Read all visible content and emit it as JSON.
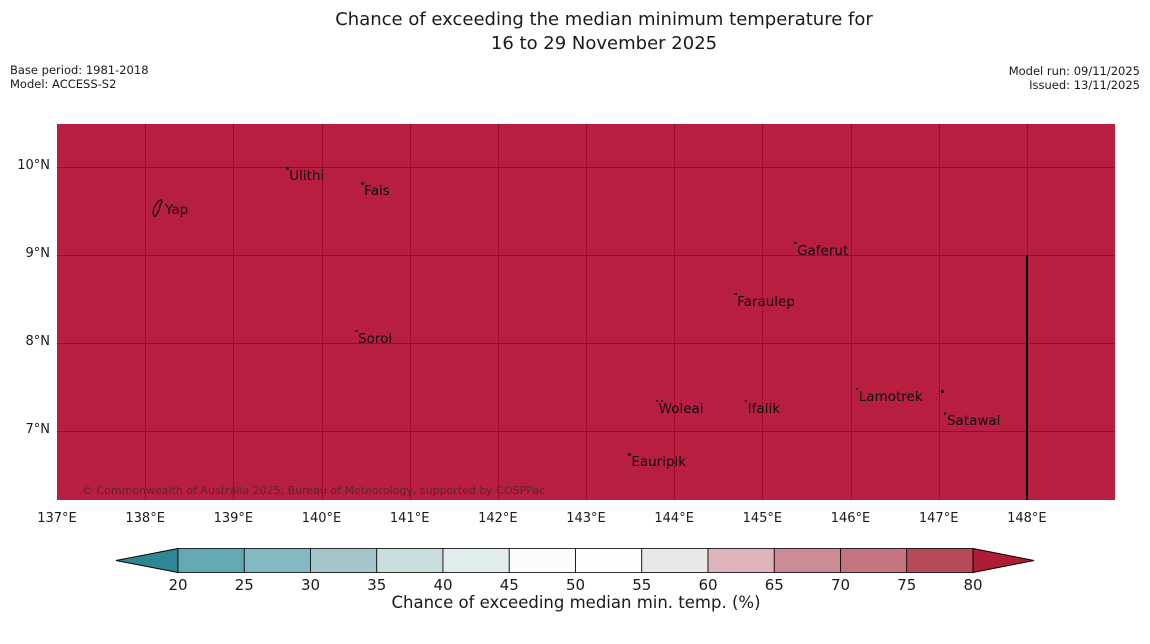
{
  "title": {
    "line1": "Chance of exceeding the median minimum temperature for",
    "line2": "16 to 29 November 2025"
  },
  "meta_left": {
    "base_period": "Base period: 1981-2018",
    "model": "Model: ACCESS-S2"
  },
  "meta_right": {
    "model_run": "Model run: 09/11/2025",
    "issued": "Issued: 13/11/2025"
  },
  "map": {
    "fill_color": "#b71e40",
    "extent": {
      "lon_min": 137.0,
      "lon_max": 149.0,
      "lat_min": 6.21,
      "lat_max": 10.49
    },
    "grid": {
      "lon_lines": [
        138,
        139,
        140,
        141,
        142,
        143,
        144,
        145,
        146,
        147,
        148
      ],
      "lat_lines": [
        7,
        8,
        9,
        10
      ],
      "lat_line_color": "#8b1028",
      "lon_line_color": "#262626"
    },
    "x_ticks": [
      {
        "lon": 137,
        "label": "137°E"
      },
      {
        "lon": 138,
        "label": "138°E"
      },
      {
        "lon": 139,
        "label": "139°E"
      },
      {
        "lon": 140,
        "label": "140°E"
      },
      {
        "lon": 141,
        "label": "141°E"
      },
      {
        "lon": 142,
        "label": "142°E"
      },
      {
        "lon": 143,
        "label": "143°E"
      },
      {
        "lon": 144,
        "label": "144°E"
      },
      {
        "lon": 145,
        "label": "145°E"
      },
      {
        "lon": 146,
        "label": "146°E"
      },
      {
        "lon": 147,
        "label": "147°E"
      },
      {
        "lon": 148,
        "label": "148°E"
      }
    ],
    "y_ticks": [
      {
        "lat": 10,
        "label": "10°N"
      },
      {
        "lat": 9,
        "label": "9°N"
      },
      {
        "lat": 8,
        "label": "8°N"
      },
      {
        "lat": 7,
        "label": "7°N"
      }
    ],
    "places": [
      {
        "name": "Yap",
        "lon": 138.1,
        "lat": 9.53,
        "marker": "island"
      },
      {
        "name": "Ulithi",
        "lon": 139.6,
        "lat": 9.92,
        "marker": "dot"
      },
      {
        "name": "Fais",
        "lon": 140.45,
        "lat": 9.75,
        "marker": "dot"
      },
      {
        "name": "Gaferut",
        "lon": 145.36,
        "lat": 9.07,
        "marker": "dot"
      },
      {
        "name": "Faraulep",
        "lon": 144.68,
        "lat": 8.49,
        "marker": "dot"
      },
      {
        "name": "Sorol",
        "lon": 140.38,
        "lat": 8.07,
        "marker": "dot"
      },
      {
        "name": "Woleai",
        "lon": 143.79,
        "lat": 7.27,
        "marker": "double-dot"
      },
      {
        "name": "Ifalik",
        "lon": 144.8,
        "lat": 7.27,
        "marker": "dot"
      },
      {
        "name": "Lamotrek",
        "lon": 146.06,
        "lat": 7.41,
        "marker": "dot"
      },
      {
        "name": "",
        "lon": 147.03,
        "lat": 7.38,
        "marker": "dot"
      },
      {
        "name": "Satawal",
        "lon": 147.06,
        "lat": 7.13,
        "marker": "dot"
      },
      {
        "name": "Eauripik",
        "lon": 143.48,
        "lat": 6.66,
        "marker": "dot"
      }
    ],
    "contour": {
      "lon": 147.99,
      "lat_from": 9.0,
      "lat_to": 6.21,
      "color": "#000000"
    },
    "copyright": "© Commonwealth of Australia 2025, Bureau of Meteorology, supported by COSPPac"
  },
  "colorbar": {
    "label": "Chance of exceeding median min. temp. (%)",
    "ticks": [
      20,
      25,
      30,
      35,
      40,
      45,
      50,
      55,
      60,
      65,
      70,
      75,
      80
    ],
    "under_color": "#2e8793",
    "over_color": "#b01c36",
    "segment_colors": [
      "#63a8b3",
      "#84b8c0",
      "#a3c6cb",
      "#c9dcde",
      "#e3edee",
      "#fbfcfc",
      "#fefefe",
      "#eae7e7",
      "#dfb4bb",
      "#cc8b94",
      "#c5737f",
      "#b84a59"
    ]
  },
  "chart_data": {
    "type": "heatmap",
    "title": "Chance of exceeding the median minimum temperature for 16 to 29 November 2025",
    "colorbar_label": "Chance of exceeding median min. temp. (%)",
    "colorbar_ticks": [
      20,
      25,
      30,
      35,
      40,
      45,
      50,
      55,
      60,
      65,
      70,
      75,
      80
    ],
    "lon_range": [
      137,
      149
    ],
    "lat_range": [
      6.21,
      10.49
    ],
    "field_summary": "uniform value above 80% over the entire mapped region (solid dark red fill)"
  }
}
